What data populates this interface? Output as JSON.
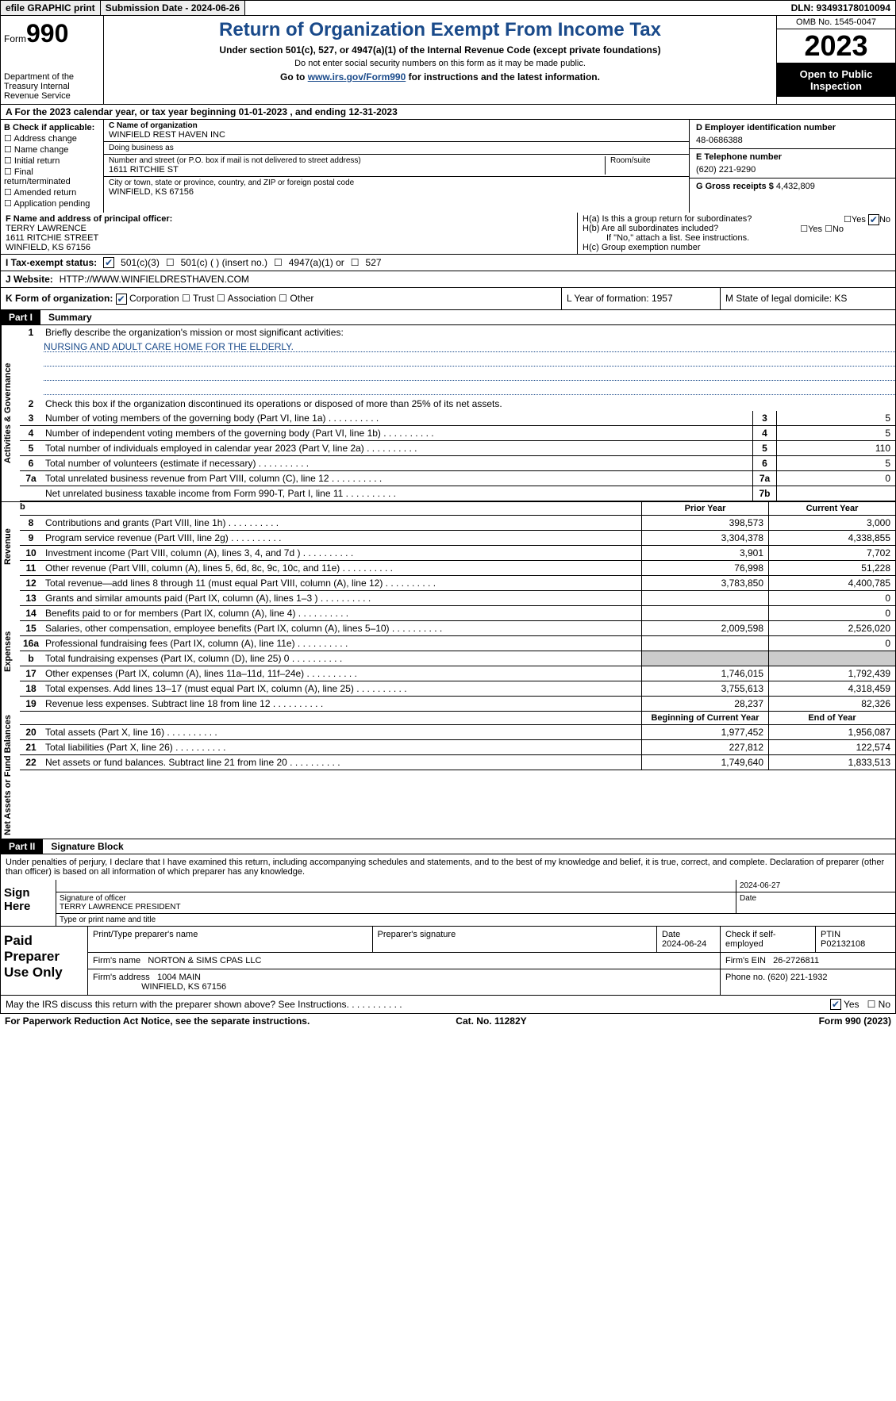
{
  "top": {
    "print": "efile GRAPHIC print",
    "submission": "Submission Date - 2024-06-26",
    "dln": "DLN: 93493178010094"
  },
  "header": {
    "form_label": "Form",
    "form_number": "990",
    "dept": "Department of the Treasury Internal Revenue Service",
    "title": "Return of Organization Exempt From Income Tax",
    "subtitle": "Under section 501(c), 527, or 4947(a)(1) of the Internal Revenue Code (except private foundations)",
    "ssn_warn": "Do not enter social security numbers on this form as it may be made public.",
    "goto_prefix": "Go to ",
    "goto_link": "www.irs.gov/Form990",
    "goto_suffix": " for instructions and the latest information.",
    "omb": "OMB No. 1545-0047",
    "year": "2023",
    "inspect": "Open to Public Inspection"
  },
  "line_a": "A   For the 2023 calendar year, or tax year beginning 01-01-2023    , and ending 12-31-2023",
  "col_b": {
    "label": "B Check if applicable:",
    "items": [
      "Address change",
      "Name change",
      "Initial return",
      "Final return/terminated",
      "Amended return",
      "Application pending"
    ]
  },
  "col_c": {
    "name_lbl": "C Name of organization",
    "name": "WINFIELD REST HAVEN INC",
    "dba_lbl": "Doing business as",
    "dba": "",
    "street_lbl": "Number and street (or P.O. box if mail is not delivered to street address)",
    "street": "1611 RITCHIE ST",
    "room_lbl": "Room/suite",
    "city_lbl": "City or town, state or province, country, and ZIP or foreign postal code",
    "city": "WINFIELD, KS  67156"
  },
  "col_d": {
    "ein_lbl": "D Employer identification number",
    "ein": "48-0686388",
    "phone_lbl": "E Telephone number",
    "phone": "(620) 221-9290",
    "gross_lbl": "G Gross receipts $",
    "gross": "4,432,809"
  },
  "row_f": {
    "lbl": "F  Name and address of principal officer:",
    "name": "TERRY LAWRENCE",
    "addr1": "1611 RITCHIE STREET",
    "addr2": "WINFIELD, KS  67156"
  },
  "row_h": {
    "ha": "H(a)  Is this a group return for subordinates?",
    "ha_yes": "Yes",
    "ha_no": "No",
    "hb": "H(b)  Are all subordinates included?",
    "hb_yes": "Yes",
    "hb_no": "No",
    "hb_note": "If \"No,\" attach a list. See instructions.",
    "hc": "H(c)  Group exemption number"
  },
  "row_i": {
    "label": "I   Tax-exempt status:",
    "o1": "501(c)(3)",
    "o2": "501(c) (  ) (insert no.)",
    "o3": "4947(a)(1) or",
    "o4": "527"
  },
  "row_j": {
    "label": "J   Website:",
    "value": "HTTP://WWW.WINFIELDRESTHAVEN.COM"
  },
  "row_k": {
    "label": "K Form of organization:",
    "o1": "Corporation",
    "o2": "Trust",
    "o3": "Association",
    "o4": "Other"
  },
  "row_l": "L Year of formation: 1957",
  "row_m": "M State of legal domicile: KS",
  "part1": {
    "num": "Part I",
    "title": "Summary"
  },
  "summary": {
    "l1_lbl": "Briefly describe the organization's mission or most significant activities:",
    "l1_val": "NURSING AND ADULT CARE HOME FOR THE ELDERLY.",
    "l2": "Check this box      if the organization discontinued its operations or disposed of more than 25% of its net assets.",
    "rows_gov": [
      {
        "n": "3",
        "t": "Number of voting members of the governing body (Part VI, line 1a)",
        "box": "3",
        "v": "5"
      },
      {
        "n": "4",
        "t": "Number of independent voting members of the governing body (Part VI, line 1b)",
        "box": "4",
        "v": "5"
      },
      {
        "n": "5",
        "t": "Total number of individuals employed in calendar year 2023 (Part V, line 2a)",
        "box": "5",
        "v": "110"
      },
      {
        "n": "6",
        "t": "Total number of volunteers (estimate if necessary)",
        "box": "6",
        "v": "5"
      },
      {
        "n": "7a",
        "t": "Total unrelated business revenue from Part VIII, column (C), line 12",
        "box": "7a",
        "v": "0"
      },
      {
        "n": "",
        "t": "Net unrelated business taxable income from Form 990-T, Part I, line 11",
        "box": "7b",
        "v": ""
      }
    ],
    "hdr_prior": "Prior Year",
    "hdr_current": "Current Year",
    "revenue": [
      {
        "n": "8",
        "t": "Contributions and grants (Part VIII, line 1h)",
        "p": "398,573",
        "c": "3,000"
      },
      {
        "n": "9",
        "t": "Program service revenue (Part VIII, line 2g)",
        "p": "3,304,378",
        "c": "4,338,855"
      },
      {
        "n": "10",
        "t": "Investment income (Part VIII, column (A), lines 3, 4, and 7d )",
        "p": "3,901",
        "c": "7,702"
      },
      {
        "n": "11",
        "t": "Other revenue (Part VIII, column (A), lines 5, 6d, 8c, 9c, 10c, and 11e)",
        "p": "76,998",
        "c": "51,228"
      },
      {
        "n": "12",
        "t": "Total revenue—add lines 8 through 11 (must equal Part VIII, column (A), line 12)",
        "p": "3,783,850",
        "c": "4,400,785"
      }
    ],
    "expenses": [
      {
        "n": "13",
        "t": "Grants and similar amounts paid (Part IX, column (A), lines 1–3 )",
        "p": "",
        "c": "0"
      },
      {
        "n": "14",
        "t": "Benefits paid to or for members (Part IX, column (A), line 4)",
        "p": "",
        "c": "0"
      },
      {
        "n": "15",
        "t": "Salaries, other compensation, employee benefits (Part IX, column (A), lines 5–10)",
        "p": "2,009,598",
        "c": "2,526,020"
      },
      {
        "n": "16a",
        "t": "Professional fundraising fees (Part IX, column (A), line 11e)",
        "p": "",
        "c": "0"
      },
      {
        "n": "b",
        "t": "Total fundraising expenses (Part IX, column (D), line 25) 0",
        "p": "grey",
        "c": "grey"
      },
      {
        "n": "17",
        "t": "Other expenses (Part IX, column (A), lines 11a–11d, 11f–24e)",
        "p": "1,746,015",
        "c": "1,792,439"
      },
      {
        "n": "18",
        "t": "Total expenses. Add lines 13–17 (must equal Part IX, column (A), line 25)",
        "p": "3,755,613",
        "c": "4,318,459"
      },
      {
        "n": "19",
        "t": "Revenue less expenses. Subtract line 18 from line 12",
        "p": "28,237",
        "c": "82,326"
      }
    ],
    "hdr_begin": "Beginning of Current Year",
    "hdr_end": "End of Year",
    "netassets": [
      {
        "n": "20",
        "t": "Total assets (Part X, line 16)",
        "p": "1,977,452",
        "c": "1,956,087"
      },
      {
        "n": "21",
        "t": "Total liabilities (Part X, line 26)",
        "p": "227,812",
        "c": "122,574"
      },
      {
        "n": "22",
        "t": "Net assets or fund balances. Subtract line 21 from line 20",
        "p": "1,749,640",
        "c": "1,833,513"
      }
    ],
    "side_gov": "Activities & Governance",
    "side_rev": "Revenue",
    "side_exp": "Expenses",
    "side_net": "Net Assets or Fund Balances"
  },
  "part2": {
    "num": "Part II",
    "title": "Signature Block"
  },
  "sig_text": "Under penalties of perjury, I declare that I have examined this return, including accompanying schedules and statements, and to the best of my knowledge and belief, it is true, correct, and complete. Declaration of preparer (other than officer) is based on all information of which preparer has any knowledge.",
  "sign": {
    "label": "Sign Here",
    "date": "2024-06-27",
    "sig_lbl": "Signature of officer",
    "name": "TERRY LAWRENCE  PRESIDENT",
    "name_lbl": "Type or print name and title",
    "date_lbl": "Date"
  },
  "prep": {
    "label": "Paid Preparer Use Only",
    "col_name": "Print/Type preparer's name",
    "col_sig": "Preparer's signature",
    "col_date": "Date",
    "date": "2024-06-24",
    "self_emp": "Check       if self-employed",
    "ptin_lbl": "PTIN",
    "ptin": "P02132108",
    "firm_name_lbl": "Firm's name",
    "firm_name": "NORTON & SIMS CPAS LLC",
    "firm_ein_lbl": "Firm's EIN",
    "firm_ein": "26-2726811",
    "firm_addr_lbl": "Firm's address",
    "firm_addr1": "1004 MAIN",
    "firm_addr2": "WINFIELD, KS  67156",
    "phone_lbl": "Phone no.",
    "phone": "(620) 221-1932"
  },
  "discuss": {
    "text": "May the IRS discuss this return with the preparer shown above? See Instructions.",
    "yes": "Yes",
    "no": "No"
  },
  "footer": {
    "left": "For Paperwork Reduction Act Notice, see the separate instructions.",
    "mid": "Cat. No. 11282Y",
    "right": "Form 990 (2023)"
  }
}
